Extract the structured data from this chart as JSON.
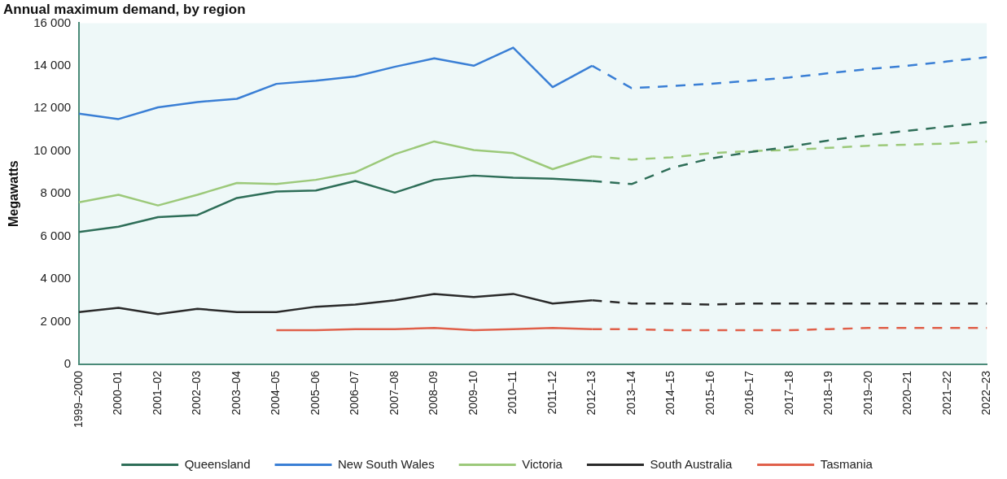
{
  "chart_data": {
    "type": "line",
    "title": "Annual maximum demand, by region",
    "ylabel": "Megawatts",
    "categories": [
      "1999–2000",
      "2000–01",
      "2001–02",
      "2002–03",
      "2003–04",
      "2004–05",
      "2005–06",
      "2006–07",
      "2007–08",
      "2008–09",
      "2009–10",
      "2010–11",
      "2011–12",
      "2012–13",
      "2013–14",
      "2014–15",
      "2015–16",
      "2016–17",
      "2017–18",
      "2018–19",
      "2019–20",
      "2020–21",
      "2021–22",
      "2022–23"
    ],
    "ylim": [
      0,
      16000
    ],
    "yticks": [
      0,
      {
        "value": 2000,
        "label": "2 000"
      },
      {
        "value": 4000,
        "label": "4 000"
      },
      {
        "value": 6000,
        "label": "6 000"
      },
      {
        "value": 8000,
        "label": "8 000"
      },
      {
        "value": 10000,
        "label": "10 000"
      },
      {
        "value": 12000,
        "label": "12 000"
      },
      {
        "value": 14000,
        "label": "14 000"
      },
      {
        "value": 16000,
        "label": "16 000"
      }
    ],
    "grid": false,
    "legend": "bottom",
    "marker": "none",
    "series": [
      {
        "name": "Queensland",
        "color": "#2e6e58",
        "line_style": "solid",
        "values": [
          6200,
          6450,
          6900,
          7000,
          7800,
          8100,
          8150,
          8600,
          8050,
          8650,
          8850,
          8750,
          8700,
          8600,
          null,
          null,
          null,
          null,
          null,
          null,
          null,
          null,
          null,
          null
        ]
      },
      {
        "name": "New South Wales",
        "color": "#3a7fd5",
        "line_style": "solid",
        "values": [
          11750,
          11500,
          12050,
          12300,
          12450,
          13150,
          13300,
          13500,
          13950,
          14350,
          14000,
          14850,
          13000,
          14000,
          null,
          null,
          null,
          null,
          null,
          null,
          null,
          null,
          null,
          null
        ]
      },
      {
        "name": "Victoria",
        "color": "#9cc97a",
        "line_style": "solid",
        "values": [
          7600,
          7950,
          7450,
          7950,
          8500,
          8450,
          8650,
          9000,
          9850,
          10450,
          10050,
          9900,
          9150,
          9750,
          null,
          null,
          null,
          null,
          null,
          null,
          null,
          null,
          null,
          null
        ]
      },
      {
        "name": "South Australia",
        "color": "#2a2a2a",
        "line_style": "solid",
        "values": [
          2450,
          2650,
          2350,
          2600,
          2450,
          2450,
          2700,
          2800,
          3000,
          3300,
          3150,
          3300,
          2850,
          3000,
          null,
          null,
          null,
          null,
          null,
          null,
          null,
          null,
          null,
          null
        ]
      },
      {
        "name": "Tasmania",
        "color": "#e0604a",
        "line_style": "solid",
        "values": [
          null,
          null,
          null,
          null,
          null,
          1600,
          1600,
          1650,
          1650,
          1700,
          1600,
          1650,
          1700,
          1650,
          null,
          null,
          null,
          null,
          null,
          null,
          null,
          null,
          null,
          null
        ]
      },
      {
        "color": "#2e6e58",
        "line_style": "dashed",
        "values": [
          null,
          null,
          null,
          null,
          null,
          null,
          null,
          null,
          null,
          null,
          null,
          null,
          null,
          8600,
          8450,
          9200,
          9650,
          9950,
          10200,
          10500,
          10750,
          10950,
          11150,
          11350
        ]
      },
      {
        "color": "#3a7fd5",
        "line_style": "dashed",
        "values": [
          null,
          null,
          null,
          null,
          null,
          null,
          null,
          null,
          null,
          null,
          null,
          null,
          null,
          14000,
          12950,
          13050,
          13150,
          13300,
          13450,
          13650,
          13850,
          14000,
          14200,
          14400
        ]
      },
      {
        "color": "#9cc97a",
        "line_style": "dashed",
        "values": [
          null,
          null,
          null,
          null,
          null,
          null,
          null,
          null,
          null,
          null,
          null,
          null,
          null,
          9750,
          9600,
          9700,
          9900,
          10000,
          10050,
          10150,
          10250,
          10300,
          10350,
          10450
        ]
      },
      {
        "color": "#2a2a2a",
        "line_style": "dashed",
        "values": [
          null,
          null,
          null,
          null,
          null,
          null,
          null,
          null,
          null,
          null,
          null,
          null,
          null,
          3000,
          2850,
          2850,
          2800,
          2850,
          2850,
          2850,
          2850,
          2850,
          2850,
          2850
        ]
      },
      {
        "color": "#e0604a",
        "line_style": "dashed",
        "values": [
          null,
          null,
          null,
          null,
          null,
          null,
          null,
          null,
          null,
          null,
          null,
          null,
          null,
          1650,
          1650,
          1600,
          1600,
          1600,
          1600,
          1650,
          1700,
          1700,
          1700,
          1700
        ]
      }
    ]
  }
}
